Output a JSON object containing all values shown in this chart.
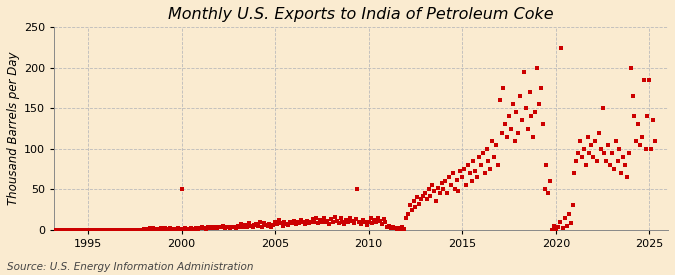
{
  "title": "Monthly U.S. Exports to India of Petroleum Coke",
  "ylabel": "Thousand Barrels per Day",
  "source": "Source: U.S. Energy Information Administration",
  "background_color": "#faebd0",
  "plot_background_color": "#faebd0",
  "marker_color": "#cc0000",
  "ylim": [
    0,
    250
  ],
  "yticks": [
    0,
    50,
    100,
    150,
    200,
    250
  ],
  "xlim_start": 1993.2,
  "xlim_end": 2026.0,
  "xticks": [
    1995,
    2000,
    2005,
    2010,
    2015,
    2020,
    2025
  ],
  "title_fontsize": 11.5,
  "label_fontsize": 8.5,
  "tick_fontsize": 8,
  "source_fontsize": 7.5,
  "marker_size": 3,
  "data_points": [
    [
      1993.0,
      0.0
    ],
    [
      1993.1,
      0.0
    ],
    [
      1993.2,
      0.0
    ],
    [
      1993.3,
      0.0
    ],
    [
      1993.4,
      0.0
    ],
    [
      1993.5,
      0.0
    ],
    [
      1993.6,
      0.0
    ],
    [
      1993.7,
      0.0
    ],
    [
      1993.8,
      0.0
    ],
    [
      1993.9,
      0.0
    ],
    [
      1994.0,
      0.0
    ],
    [
      1994.1,
      0.0
    ],
    [
      1994.2,
      0.0
    ],
    [
      1994.3,
      0.0
    ],
    [
      1994.4,
      0.0
    ],
    [
      1994.5,
      0.0
    ],
    [
      1994.6,
      0.0
    ],
    [
      1994.7,
      0.0
    ],
    [
      1994.8,
      0.0
    ],
    [
      1994.9,
      0.0
    ],
    [
      1995.0,
      0.0
    ],
    [
      1995.1,
      0.0
    ],
    [
      1995.2,
      0.0
    ],
    [
      1995.3,
      0.0
    ],
    [
      1995.4,
      0.0
    ],
    [
      1995.5,
      0.0
    ],
    [
      1995.6,
      0.0
    ],
    [
      1995.7,
      0.0
    ],
    [
      1995.8,
      0.0
    ],
    [
      1995.9,
      0.0
    ],
    [
      1996.0,
      0.0
    ],
    [
      1996.1,
      0.0
    ],
    [
      1996.2,
      0.0
    ],
    [
      1996.3,
      0.0
    ],
    [
      1996.4,
      0.0
    ],
    [
      1996.5,
      0.0
    ],
    [
      1996.6,
      0.0
    ],
    [
      1996.7,
      0.0
    ],
    [
      1996.8,
      0.0
    ],
    [
      1996.9,
      0.0
    ],
    [
      1997.0,
      0.0
    ],
    [
      1997.1,
      0.0
    ],
    [
      1997.2,
      0.0
    ],
    [
      1997.3,
      0.0
    ],
    [
      1997.4,
      0.0
    ],
    [
      1997.5,
      0.0
    ],
    [
      1997.6,
      0.0
    ],
    [
      1997.7,
      0.0
    ],
    [
      1997.8,
      0.0
    ],
    [
      1997.9,
      0.0
    ],
    [
      1998.0,
      1.0
    ],
    [
      1998.1,
      0.5
    ],
    [
      1998.2,
      1.0
    ],
    [
      1998.3,
      2.0
    ],
    [
      1998.4,
      1.0
    ],
    [
      1998.5,
      2.5
    ],
    [
      1998.6,
      1.5
    ],
    [
      1998.7,
      0.5
    ],
    [
      1998.8,
      1.0
    ],
    [
      1998.9,
      2.0
    ],
    [
      1999.0,
      1.5
    ],
    [
      1999.1,
      2.0
    ],
    [
      1999.2,
      1.0
    ],
    [
      1999.3,
      1.5
    ],
    [
      1999.4,
      2.0
    ],
    [
      1999.5,
      1.0
    ],
    [
      1999.6,
      0.5
    ],
    [
      1999.7,
      1.5
    ],
    [
      1999.8,
      2.0
    ],
    [
      1999.9,
      1.0
    ],
    [
      2000.0,
      50.0
    ],
    [
      2000.1,
      1.0
    ],
    [
      2000.2,
      2.0
    ],
    [
      2000.3,
      1.0
    ],
    [
      2000.4,
      1.5
    ],
    [
      2000.5,
      2.0
    ],
    [
      2000.6,
      1.0
    ],
    [
      2000.7,
      1.5
    ],
    [
      2000.8,
      2.0
    ],
    [
      2000.9,
      1.0
    ],
    [
      2001.0,
      2.0
    ],
    [
      2001.1,
      3.0
    ],
    [
      2001.2,
      2.0
    ],
    [
      2001.3,
      1.5
    ],
    [
      2001.4,
      3.5
    ],
    [
      2001.5,
      2.0
    ],
    [
      2001.6,
      4.0
    ],
    [
      2001.7,
      2.5
    ],
    [
      2001.8,
      3.0
    ],
    [
      2001.9,
      2.0
    ],
    [
      2002.0,
      4.0
    ],
    [
      2002.1,
      3.0
    ],
    [
      2002.2,
      5.0
    ],
    [
      2002.3,
      2.0
    ],
    [
      2002.4,
      4.0
    ],
    [
      2002.5,
      3.0
    ],
    [
      2002.6,
      2.5
    ],
    [
      2002.7,
      4.0
    ],
    [
      2002.8,
      3.5
    ],
    [
      2002.9,
      2.0
    ],
    [
      2003.0,
      5.0
    ],
    [
      2003.1,
      3.0
    ],
    [
      2003.2,
      7.0
    ],
    [
      2003.3,
      4.0
    ],
    [
      2003.4,
      6.0
    ],
    [
      2003.5,
      3.0
    ],
    [
      2003.6,
      8.0
    ],
    [
      2003.7,
      5.0
    ],
    [
      2003.8,
      4.0
    ],
    [
      2003.9,
      6.0
    ],
    [
      2004.0,
      7.0
    ],
    [
      2004.1,
      5.0
    ],
    [
      2004.2,
      9.0
    ],
    [
      2004.3,
      4.0
    ],
    [
      2004.4,
      8.0
    ],
    [
      2004.5,
      6.0
    ],
    [
      2004.6,
      5.0
    ],
    [
      2004.7,
      7.0
    ],
    [
      2004.8,
      4.0
    ],
    [
      2004.9,
      6.0
    ],
    [
      2005.0,
      9.0
    ],
    [
      2005.1,
      7.0
    ],
    [
      2005.2,
      12.0
    ],
    [
      2005.3,
      8.0
    ],
    [
      2005.4,
      5.0
    ],
    [
      2005.5,
      10.0
    ],
    [
      2005.6,
      7.0
    ],
    [
      2005.7,
      6.0
    ],
    [
      2005.8,
      9.0
    ],
    [
      2005.9,
      8.0
    ],
    [
      2006.0,
      11.0
    ],
    [
      2006.1,
      7.0
    ],
    [
      2006.2,
      10.0
    ],
    [
      2006.3,
      8.0
    ],
    [
      2006.4,
      12.0
    ],
    [
      2006.5,
      9.0
    ],
    [
      2006.6,
      7.0
    ],
    [
      2006.7,
      11.0
    ],
    [
      2006.8,
      8.0
    ],
    [
      2006.9,
      10.0
    ],
    [
      2007.0,
      13.0
    ],
    [
      2007.1,
      9.0
    ],
    [
      2007.2,
      14.0
    ],
    [
      2007.3,
      8.0
    ],
    [
      2007.4,
      12.0
    ],
    [
      2007.5,
      10.0
    ],
    [
      2007.6,
      15.0
    ],
    [
      2007.7,
      9.0
    ],
    [
      2007.8,
      11.0
    ],
    [
      2007.9,
      7.0
    ],
    [
      2008.0,
      13.0
    ],
    [
      2008.1,
      9.0
    ],
    [
      2008.2,
      16.0
    ],
    [
      2008.3,
      11.0
    ],
    [
      2008.4,
      8.0
    ],
    [
      2008.5,
      14.0
    ],
    [
      2008.6,
      10.0
    ],
    [
      2008.7,
      7.0
    ],
    [
      2008.8,
      12.0
    ],
    [
      2008.9,
      9.0
    ],
    [
      2009.0,
      15.0
    ],
    [
      2009.1,
      11.0
    ],
    [
      2009.2,
      8.0
    ],
    [
      2009.3,
      13.0
    ],
    [
      2009.4,
      50.0
    ],
    [
      2009.5,
      10.0
    ],
    [
      2009.6,
      7.0
    ],
    [
      2009.7,
      12.0
    ],
    [
      2009.8,
      9.0
    ],
    [
      2009.9,
      6.0
    ],
    [
      2010.0,
      10.0
    ],
    [
      2010.1,
      14.0
    ],
    [
      2010.2,
      8.0
    ],
    [
      2010.3,
      12.0
    ],
    [
      2010.4,
      9.0
    ],
    [
      2010.5,
      15.0
    ],
    [
      2010.6,
      11.0
    ],
    [
      2010.7,
      7.0
    ],
    [
      2010.8,
      13.0
    ],
    [
      2010.9,
      9.0
    ],
    [
      2011.0,
      3.0
    ],
    [
      2011.1,
      5.0
    ],
    [
      2011.2,
      2.0
    ],
    [
      2011.3,
      4.0
    ],
    [
      2011.4,
      2.0
    ],
    [
      2011.5,
      1.0
    ],
    [
      2011.6,
      2.0
    ],
    [
      2011.7,
      1.0
    ],
    [
      2011.8,
      3.0
    ],
    [
      2011.9,
      1.0
    ],
    [
      2012.0,
      15.0
    ],
    [
      2012.1,
      20.0
    ],
    [
      2012.2,
      30.0
    ],
    [
      2012.3,
      25.0
    ],
    [
      2012.4,
      35.0
    ],
    [
      2012.5,
      28.0
    ],
    [
      2012.6,
      40.0
    ],
    [
      2012.7,
      32.0
    ],
    [
      2012.8,
      38.0
    ],
    [
      2012.9,
      42.0
    ],
    [
      2013.0,
      45.0
    ],
    [
      2013.1,
      38.0
    ],
    [
      2013.2,
      50.0
    ],
    [
      2013.3,
      42.0
    ],
    [
      2013.4,
      55.0
    ],
    [
      2013.5,
      48.0
    ],
    [
      2013.6,
      35.0
    ],
    [
      2013.7,
      52.0
    ],
    [
      2013.8,
      45.0
    ],
    [
      2013.9,
      58.0
    ],
    [
      2014.0,
      50.0
    ],
    [
      2014.1,
      60.0
    ],
    [
      2014.2,
      45.0
    ],
    [
      2014.3,
      65.0
    ],
    [
      2014.4,
      55.0
    ],
    [
      2014.5,
      70.0
    ],
    [
      2014.6,
      50.0
    ],
    [
      2014.7,
      62.0
    ],
    [
      2014.8,
      48.0
    ],
    [
      2014.9,
      72.0
    ],
    [
      2015.0,
      65.0
    ],
    [
      2015.1,
      75.0
    ],
    [
      2015.2,
      55.0
    ],
    [
      2015.3,
      80.0
    ],
    [
      2015.4,
      70.0
    ],
    [
      2015.5,
      60.0
    ],
    [
      2015.6,
      85.0
    ],
    [
      2015.7,
      72.0
    ],
    [
      2015.8,
      65.0
    ],
    [
      2015.9,
      90.0
    ],
    [
      2016.0,
      80.0
    ],
    [
      2016.1,
      95.0
    ],
    [
      2016.2,
      70.0
    ],
    [
      2016.3,
      100.0
    ],
    [
      2016.4,
      85.0
    ],
    [
      2016.5,
      75.0
    ],
    [
      2016.6,
      110.0
    ],
    [
      2016.7,
      90.0
    ],
    [
      2016.8,
      105.0
    ],
    [
      2016.9,
      80.0
    ],
    [
      2017.0,
      160.0
    ],
    [
      2017.1,
      120.0
    ],
    [
      2017.2,
      175.0
    ],
    [
      2017.3,
      130.0
    ],
    [
      2017.4,
      115.0
    ],
    [
      2017.5,
      140.0
    ],
    [
      2017.6,
      125.0
    ],
    [
      2017.7,
      155.0
    ],
    [
      2017.8,
      110.0
    ],
    [
      2017.9,
      145.0
    ],
    [
      2018.0,
      120.0
    ],
    [
      2018.1,
      165.0
    ],
    [
      2018.2,
      135.0
    ],
    [
      2018.3,
      195.0
    ],
    [
      2018.4,
      150.0
    ],
    [
      2018.5,
      125.0
    ],
    [
      2018.6,
      170.0
    ],
    [
      2018.7,
      140.0
    ],
    [
      2018.8,
      115.0
    ],
    [
      2018.9,
      145.0
    ],
    [
      2019.0,
      200.0
    ],
    [
      2019.1,
      155.0
    ],
    [
      2019.2,
      175.0
    ],
    [
      2019.3,
      130.0
    ],
    [
      2019.4,
      50.0
    ],
    [
      2019.5,
      80.0
    ],
    [
      2019.6,
      45.0
    ],
    [
      2019.7,
      60.0
    ],
    [
      2019.8,
      0.0
    ],
    [
      2019.9,
      5.0
    ],
    [
      2020.0,
      0.0
    ],
    [
      2020.1,
      3.0
    ],
    [
      2020.2,
      10.0
    ],
    [
      2020.3,
      225.0
    ],
    [
      2020.4,
      2.0
    ],
    [
      2020.5,
      15.0
    ],
    [
      2020.6,
      5.0
    ],
    [
      2020.7,
      20.0
    ],
    [
      2020.8,
      8.0
    ],
    [
      2020.9,
      30.0
    ],
    [
      2021.0,
      70.0
    ],
    [
      2021.1,
      85.0
    ],
    [
      2021.2,
      95.0
    ],
    [
      2021.3,
      110.0
    ],
    [
      2021.4,
      90.0
    ],
    [
      2021.5,
      100.0
    ],
    [
      2021.6,
      80.0
    ],
    [
      2021.7,
      115.0
    ],
    [
      2021.8,
      95.0
    ],
    [
      2021.9,
      105.0
    ],
    [
      2022.0,
      90.0
    ],
    [
      2022.1,
      110.0
    ],
    [
      2022.2,
      85.0
    ],
    [
      2022.3,
      120.0
    ],
    [
      2022.4,
      100.0
    ],
    [
      2022.5,
      150.0
    ],
    [
      2022.6,
      95.0
    ],
    [
      2022.7,
      85.0
    ],
    [
      2022.8,
      105.0
    ],
    [
      2022.9,
      80.0
    ],
    [
      2023.0,
      95.0
    ],
    [
      2023.1,
      75.0
    ],
    [
      2023.2,
      110.0
    ],
    [
      2023.3,
      85.0
    ],
    [
      2023.4,
      100.0
    ],
    [
      2023.5,
      70.0
    ],
    [
      2023.6,
      90.0
    ],
    [
      2023.7,
      80.0
    ],
    [
      2023.8,
      65.0
    ],
    [
      2023.9,
      95.0
    ],
    [
      2024.0,
      200.0
    ],
    [
      2024.1,
      165.0
    ],
    [
      2024.2,
      140.0
    ],
    [
      2024.3,
      110.0
    ],
    [
      2024.4,
      130.0
    ],
    [
      2024.5,
      105.0
    ],
    [
      2024.6,
      115.0
    ],
    [
      2024.7,
      185.0
    ],
    [
      2024.8,
      100.0
    ],
    [
      2024.9,
      140.0
    ],
    [
      2025.0,
      185.0
    ],
    [
      2025.1,
      100.0
    ],
    [
      2025.2,
      135.0
    ],
    [
      2025.3,
      110.0
    ]
  ]
}
